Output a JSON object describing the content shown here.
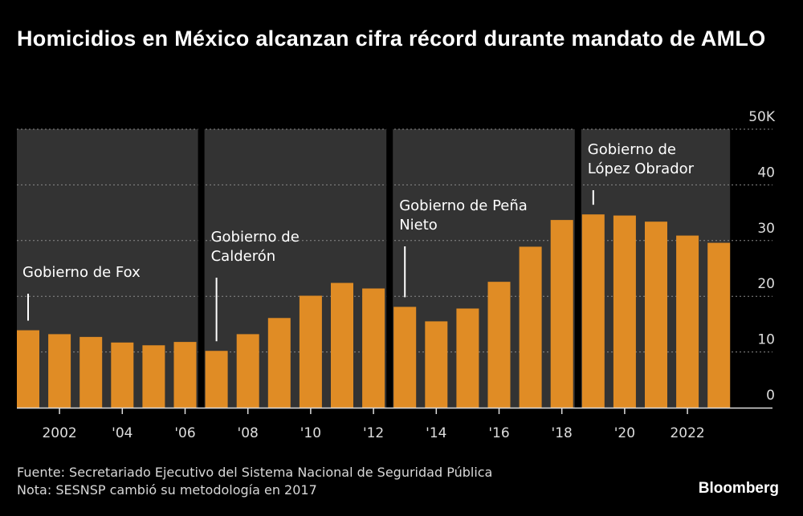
{
  "title": "Homicidios en México alcanzan cifra récord durante mandato de AMLO",
  "footer": {
    "source": "Fuente: Secretariado Ejecutivo del Sistema Nacional de Seguridad Pública",
    "note": "Nota: SESNSP cambió su metodología en 2017"
  },
  "logo": "Bloomberg",
  "colors": {
    "bar": "#e08c25",
    "shade": "#333333",
    "background": "#000000"
  },
  "chart_data": {
    "type": "bar",
    "title": "Homicidios en México alcanzan cifra récord durante mandato de AMLO",
    "x": [
      2001,
      2002,
      2003,
      2004,
      2005,
      2006,
      2007,
      2008,
      2009,
      2010,
      2011,
      2012,
      2013,
      2014,
      2015,
      2016,
      2017,
      2018,
      2019,
      2020,
      2021,
      2022,
      2023
    ],
    "values": [
      13.9,
      13.2,
      12.7,
      11.7,
      11.2,
      11.8,
      10.2,
      13.2,
      16.1,
      20.1,
      22.4,
      21.4,
      18.1,
      15.5,
      17.8,
      22.6,
      28.9,
      33.7,
      34.7,
      34.5,
      33.4,
      30.9,
      29.6
    ],
    "ylim": [
      0,
      50
    ],
    "yticks": [
      "0",
      "10",
      "20",
      "30",
      "40",
      "50K"
    ],
    "ytick_values": [
      0,
      10,
      20,
      30,
      40,
      50
    ],
    "xticks": [
      "2002",
      "'04",
      "'06",
      "'08",
      "'10",
      "'12",
      "'14",
      "'16",
      "'18",
      "'20",
      "2022"
    ],
    "xtick_values": [
      2002,
      2004,
      2006,
      2008,
      2010,
      2012,
      2014,
      2016,
      2018,
      2020,
      2022
    ],
    "grid": true,
    "periods": [
      {
        "label_lines": [
          "Gobierno de Fox"
        ],
        "start": 2001,
        "end": 2006
      },
      {
        "label_lines": [
          "Gobierno de",
          "Calderón"
        ],
        "start": 2007,
        "end": 2012
      },
      {
        "label_lines": [
          "Gobierno de Peña",
          "Nieto"
        ],
        "start": 2013,
        "end": 2018
      },
      {
        "label_lines": [
          "Gobierno de",
          "López Obrador"
        ],
        "start": 2019,
        "end": 2023
      }
    ]
  }
}
